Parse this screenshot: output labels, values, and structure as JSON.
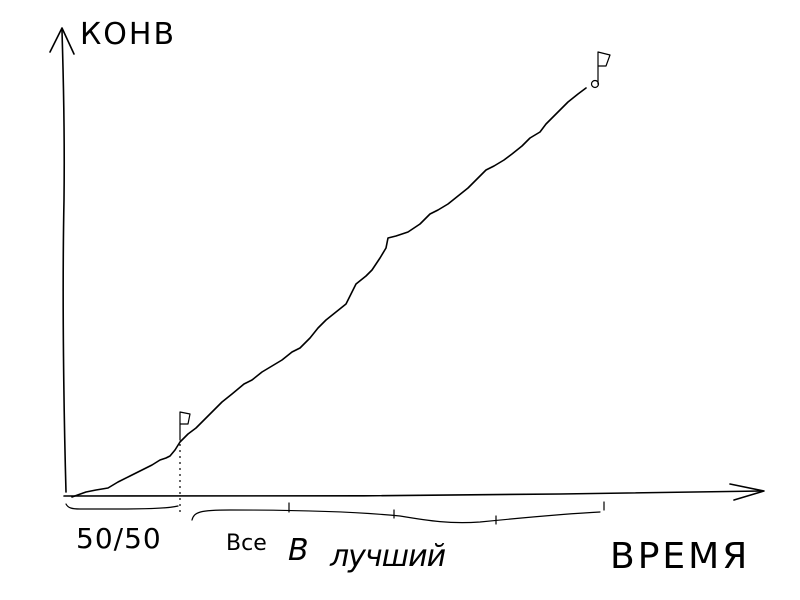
{
  "diagram": {
    "y_axis_label": "КОНВ",
    "x_axis_label": "ВРЕМЯ",
    "phase_labels": {
      "split_test": "50/50",
      "all_in": "Все",
      "rest_prefix": "В",
      "rest_word": "лучший"
    },
    "color": "#000000"
  }
}
